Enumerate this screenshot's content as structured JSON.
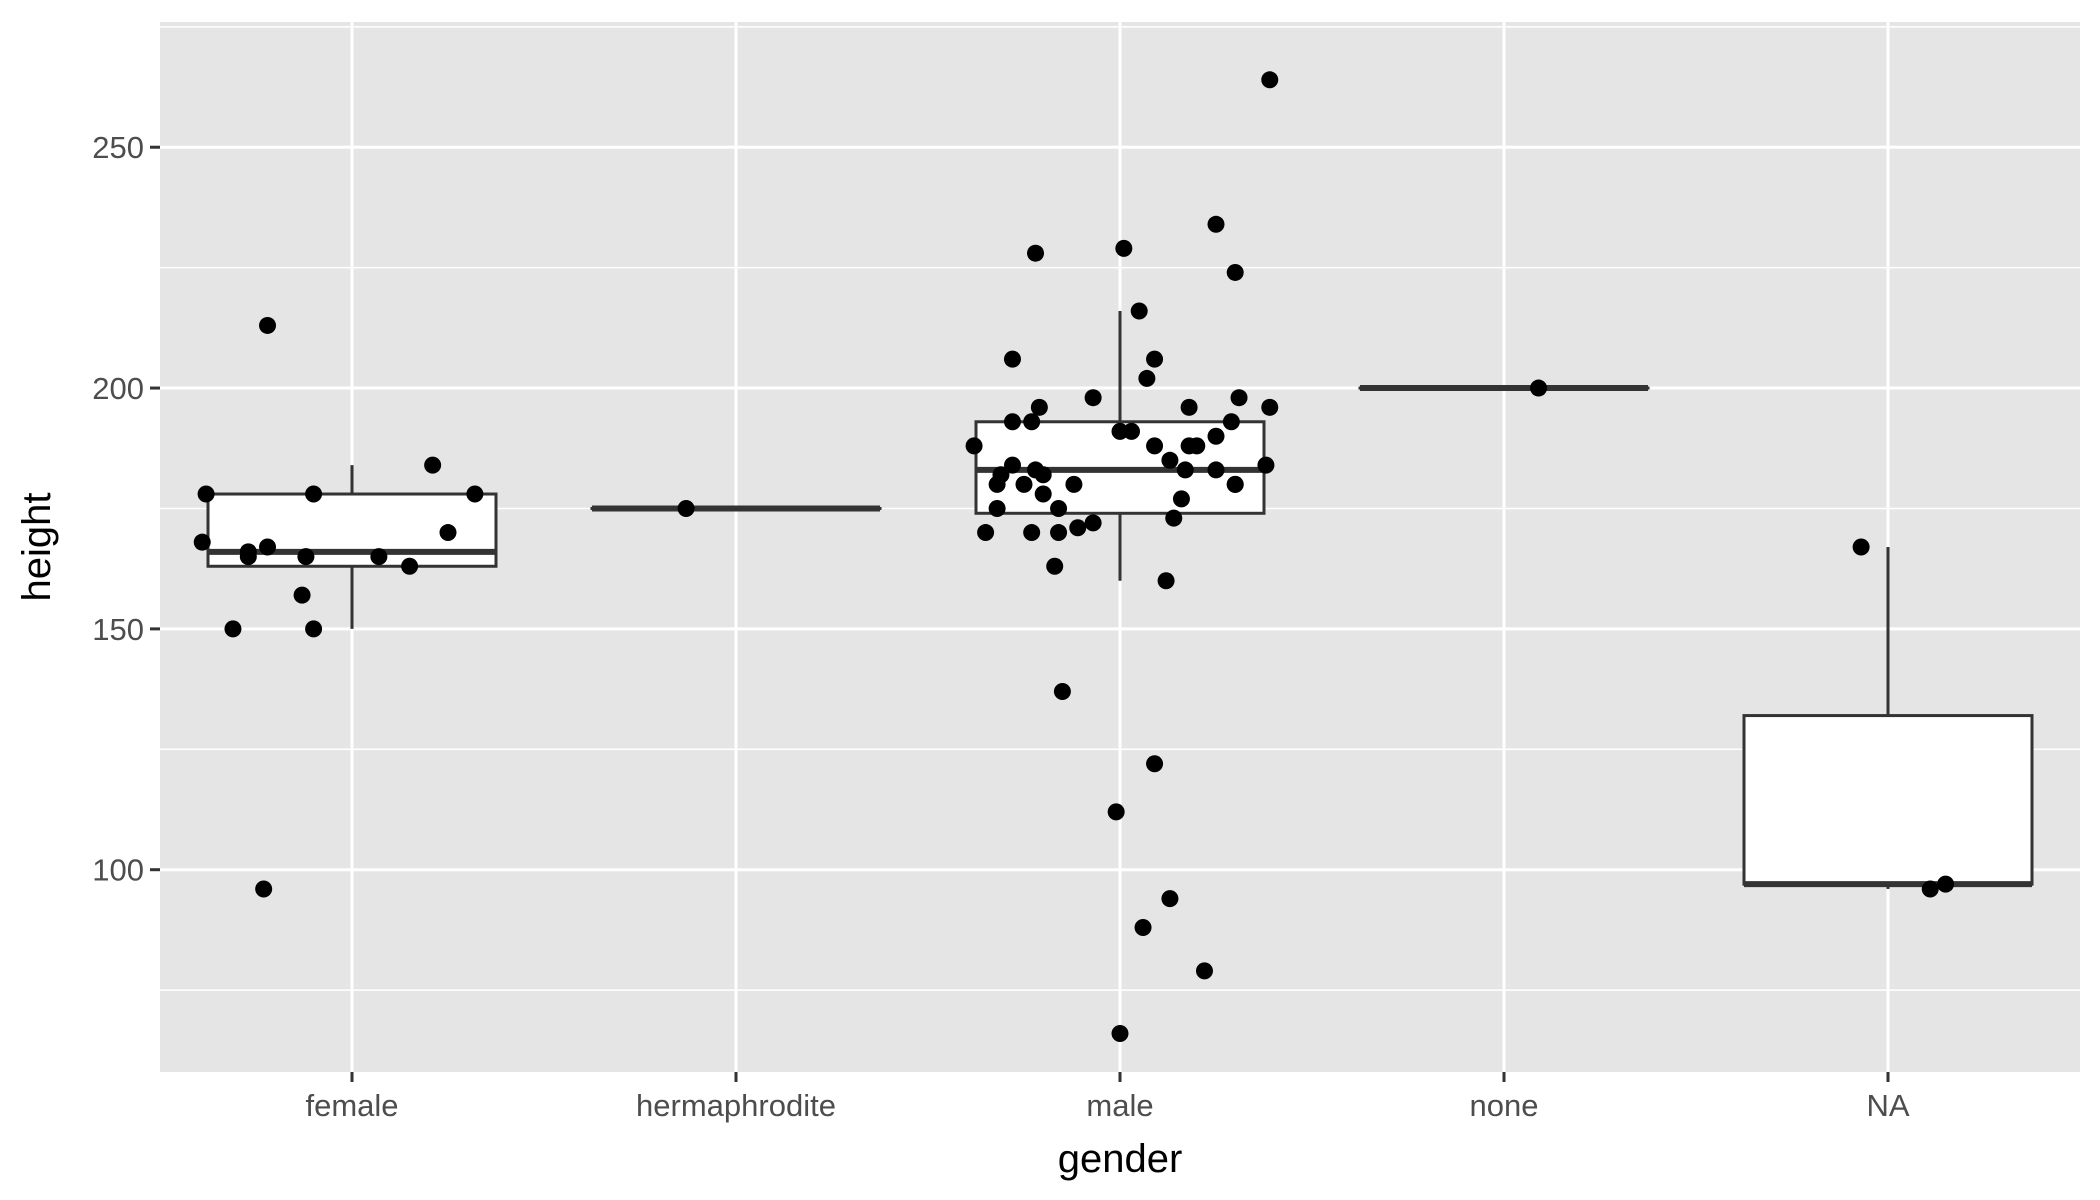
{
  "chart_data": {
    "type": "box",
    "xlabel": "gender",
    "ylabel": "height",
    "ylim": [
      58,
      276
    ],
    "y_ticks": [
      100,
      150,
      200,
      250
    ],
    "categories": [
      "female",
      "hermaphrodite",
      "male",
      "none",
      "NA"
    ],
    "boxes": [
      {
        "category": "female",
        "q1": 163,
        "median": 166,
        "q3": 178,
        "whisker_low": 150,
        "whisker_high": 184
      },
      {
        "category": "hermaphrodite",
        "q1": 175,
        "median": 175,
        "q3": 175,
        "whisker_low": 175,
        "whisker_high": 175
      },
      {
        "category": "male",
        "q1": 174,
        "median": 183,
        "q3": 193,
        "whisker_low": 160,
        "whisker_high": 216
      },
      {
        "category": "none",
        "q1": 200,
        "median": 200,
        "q3": 200,
        "whisker_low": 200,
        "whisker_high": 200
      },
      {
        "category": "NA",
        "q1": 97,
        "median": 97,
        "q3": 132,
        "whisker_low": 96,
        "whisker_high": 167
      }
    ],
    "points": [
      {
        "category": "female",
        "jitter": -0.38,
        "y": 178
      },
      {
        "category": "female",
        "jitter": -0.39,
        "y": 168
      },
      {
        "category": "female",
        "jitter": -0.22,
        "y": 213
      },
      {
        "category": "female",
        "jitter": 0.21,
        "y": 184
      },
      {
        "category": "female",
        "jitter": -0.27,
        "y": 166
      },
      {
        "category": "female",
        "jitter": -0.27,
        "y": 165
      },
      {
        "category": "female",
        "jitter": -0.22,
        "y": 167
      },
      {
        "category": "female",
        "jitter": -0.12,
        "y": 165
      },
      {
        "category": "female",
        "jitter": -0.1,
        "y": 178
      },
      {
        "category": "female",
        "jitter": 0.07,
        "y": 165
      },
      {
        "category": "female",
        "jitter": 0.15,
        "y": 163
      },
      {
        "category": "female",
        "jitter": 0.25,
        "y": 170
      },
      {
        "category": "female",
        "jitter": 0.32,
        "y": 178
      },
      {
        "category": "female",
        "jitter": -0.13,
        "y": 157
      },
      {
        "category": "female",
        "jitter": -0.31,
        "y": 150
      },
      {
        "category": "female",
        "jitter": -0.1,
        "y": 150
      },
      {
        "category": "female",
        "jitter": -0.23,
        "y": 96
      },
      {
        "category": "hermaphrodite",
        "jitter": -0.13,
        "y": 175
      },
      {
        "category": "male",
        "jitter": 0.39,
        "y": 264
      },
      {
        "category": "male",
        "jitter": 0.25,
        "y": 234
      },
      {
        "category": "male",
        "jitter": 0.3,
        "y": 224
      },
      {
        "category": "male",
        "jitter": -0.22,
        "y": 228
      },
      {
        "category": "male",
        "jitter": 0.01,
        "y": 229
      },
      {
        "category": "male",
        "jitter": 0.05,
        "y": 216
      },
      {
        "category": "male",
        "jitter": 0.09,
        "y": 206
      },
      {
        "category": "male",
        "jitter": 0.07,
        "y": 202
      },
      {
        "category": "male",
        "jitter": -0.28,
        "y": 206
      },
      {
        "category": "male",
        "jitter": -0.07,
        "y": 198
      },
      {
        "category": "male",
        "jitter": -0.21,
        "y": 196
      },
      {
        "category": "male",
        "jitter": -0.23,
        "y": 193
      },
      {
        "category": "male",
        "jitter": -0.28,
        "y": 193
      },
      {
        "category": "male",
        "jitter": 0.18,
        "y": 196
      },
      {
        "category": "male",
        "jitter": 0.31,
        "y": 198
      },
      {
        "category": "male",
        "jitter": 0.39,
        "y": 196
      },
      {
        "category": "male",
        "jitter": 0.29,
        "y": 193
      },
      {
        "category": "male",
        "jitter": 0.25,
        "y": 190
      },
      {
        "category": "male",
        "jitter": 0.2,
        "y": 188
      },
      {
        "category": "male",
        "jitter": 0.18,
        "y": 188
      },
      {
        "category": "male",
        "jitter": 0.09,
        "y": 188
      },
      {
        "category": "male",
        "jitter": 0.03,
        "y": 191
      },
      {
        "category": "male",
        "jitter": 0.0,
        "y": 191
      },
      {
        "category": "male",
        "jitter": -0.38,
        "y": 188
      },
      {
        "category": "male",
        "jitter": 0.13,
        "y": 185
      },
      {
        "category": "male",
        "jitter": 0.17,
        "y": 183
      },
      {
        "category": "male",
        "jitter": 0.25,
        "y": 183
      },
      {
        "category": "male",
        "jitter": 0.38,
        "y": 184
      },
      {
        "category": "male",
        "jitter": 0.3,
        "y": 180
      },
      {
        "category": "male",
        "jitter": 0.3,
        "y": 180
      },
      {
        "category": "male",
        "jitter": -0.28,
        "y": 184
      },
      {
        "category": "male",
        "jitter": -0.31,
        "y": 182
      },
      {
        "category": "male",
        "jitter": -0.22,
        "y": 183
      },
      {
        "category": "male",
        "jitter": -0.2,
        "y": 182
      },
      {
        "category": "male",
        "jitter": -0.25,
        "y": 180
      },
      {
        "category": "male",
        "jitter": -0.32,
        "y": 180
      },
      {
        "category": "male",
        "jitter": -0.12,
        "y": 180
      },
      {
        "category": "male",
        "jitter": -0.2,
        "y": 178
      },
      {
        "category": "male",
        "jitter": -0.16,
        "y": 175
      },
      {
        "category": "male",
        "jitter": -0.32,
        "y": 175
      },
      {
        "category": "male",
        "jitter": 0.16,
        "y": 177
      },
      {
        "category": "male",
        "jitter": 0.14,
        "y": 173
      },
      {
        "category": "male",
        "jitter": -0.35,
        "y": 170
      },
      {
        "category": "male",
        "jitter": -0.23,
        "y": 170
      },
      {
        "category": "male",
        "jitter": -0.16,
        "y": 170
      },
      {
        "category": "male",
        "jitter": -0.11,
        "y": 171
      },
      {
        "category": "male",
        "jitter": -0.07,
        "y": 172
      },
      {
        "category": "male",
        "jitter": -0.17,
        "y": 163
      },
      {
        "category": "male",
        "jitter": 0.12,
        "y": 160
      },
      {
        "category": "male",
        "jitter": -0.15,
        "y": 137
      },
      {
        "category": "male",
        "jitter": 0.09,
        "y": 122
      },
      {
        "category": "male",
        "jitter": -0.01,
        "y": 112
      },
      {
        "category": "male",
        "jitter": 0.13,
        "y": 94
      },
      {
        "category": "male",
        "jitter": 0.06,
        "y": 88
      },
      {
        "category": "male",
        "jitter": 0.22,
        "y": 79
      },
      {
        "category": "male",
        "jitter": 0.0,
        "y": 66
      },
      {
        "category": "none",
        "jitter": 0.09,
        "y": 200
      },
      {
        "category": "NA",
        "jitter": -0.07,
        "y": 167
      },
      {
        "category": "NA",
        "jitter": 0.11,
        "y": 96
      },
      {
        "category": "NA",
        "jitter": 0.15,
        "y": 97
      }
    ],
    "panel_background": "#e5e5e5",
    "gridline_color": "#ffffff",
    "point_color": "#000000",
    "box_fill": "#ffffff",
    "box_stroke": "#333333",
    "grid": true,
    "legend": "none"
  }
}
